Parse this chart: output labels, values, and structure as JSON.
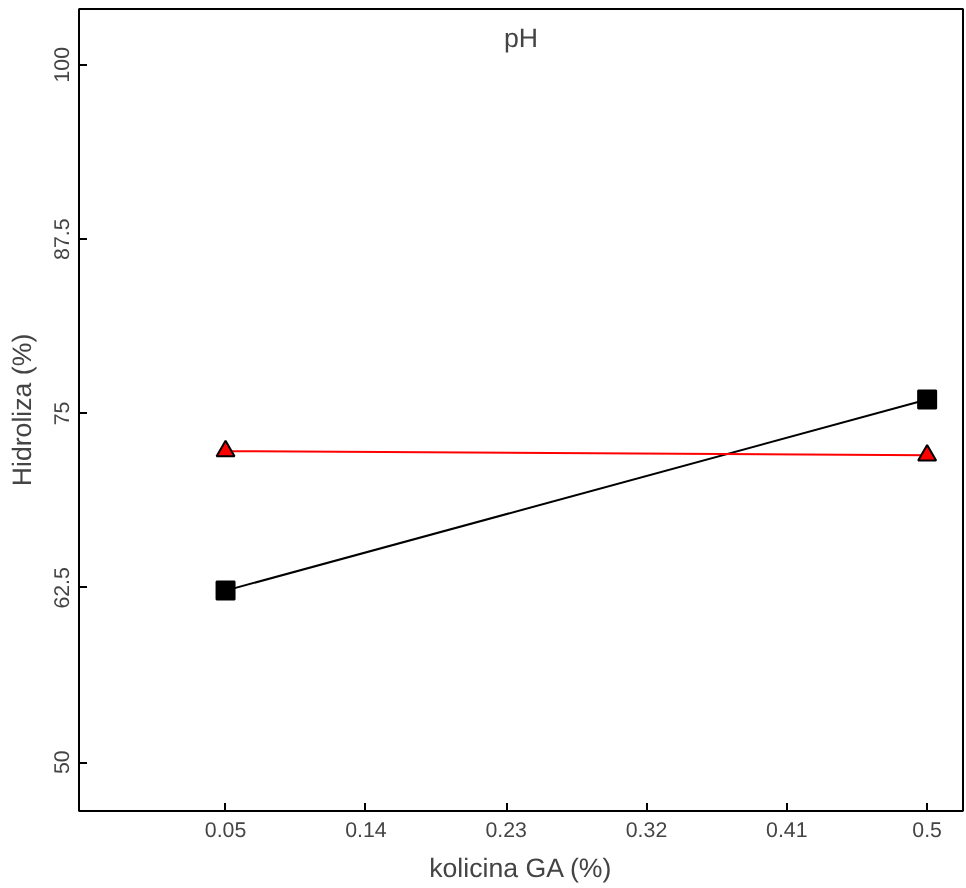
{
  "chart_data": {
    "type": "line",
    "title": "pH",
    "xlabel": "kolicina GA (%)",
    "ylabel": "Hidroliza (%)",
    "x": [
      0.05,
      0.5
    ],
    "series": [
      {
        "color": "#000000",
        "values": [
          62.3,
          76.0
        ],
        "marker": "square"
      },
      {
        "color": "#ff0000",
        "values": [
          72.3,
          72.0
        ],
        "marker": "triangle"
      }
    ],
    "xlim": [
      -0.044,
      0.523
    ],
    "xticks": [
      0.05,
      0.14,
      0.23,
      0.32,
      0.41,
      0.5
    ],
    "ylim": [
      46.5,
      104
    ],
    "yticks": [
      50,
      62.5,
      75,
      87.5,
      100
    ],
    "grid": false,
    "line_style": "solid"
  }
}
